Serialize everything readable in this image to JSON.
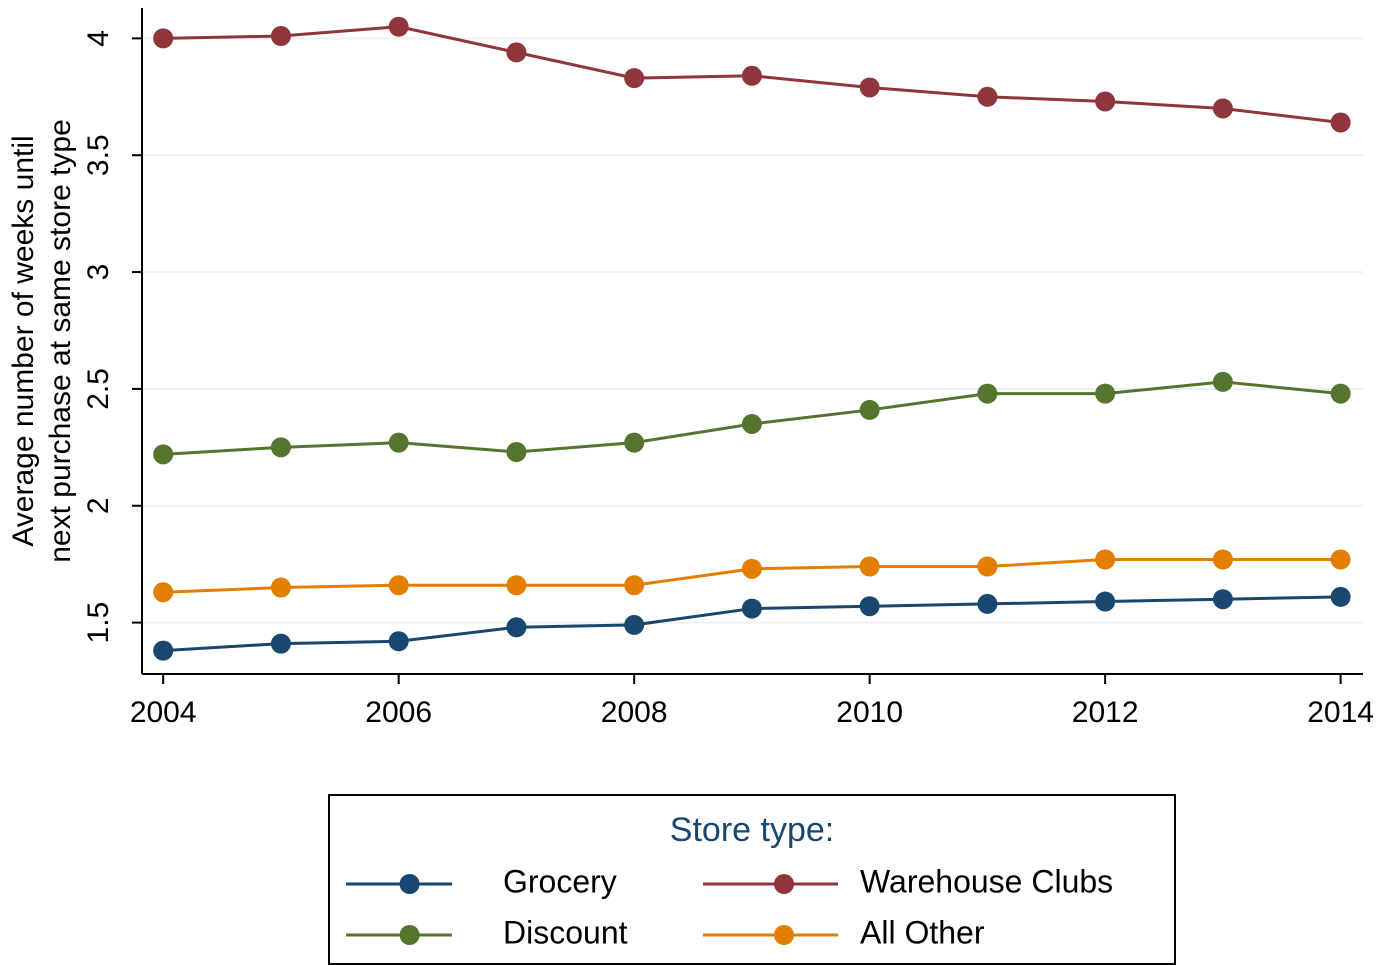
{
  "chart_data": {
    "type": "line",
    "y_label": [
      "Average number of weeks until",
      "next purchase at same store type"
    ],
    "x": [
      2004,
      2005,
      2006,
      2007,
      2008,
      2009,
      2010,
      2011,
      2012,
      2013,
      2014
    ],
    "series": [
      {
        "name": "Grocery",
        "color": "#1a476f",
        "values": [
          1.38,
          1.41,
          1.42,
          1.48,
          1.49,
          1.56,
          1.57,
          1.58,
          1.59,
          1.6,
          1.61
        ]
      },
      {
        "name": "Warehouse Clubs",
        "color": "#90353b",
        "values": [
          4.0,
          4.01,
          4.05,
          3.94,
          3.83,
          3.84,
          3.79,
          3.75,
          3.73,
          3.7,
          3.64
        ]
      },
      {
        "name": "Discount",
        "color": "#55752f",
        "values": [
          2.22,
          2.25,
          2.27,
          2.23,
          2.27,
          2.35,
          2.41,
          2.48,
          2.48,
          2.53,
          2.48
        ]
      },
      {
        "name": "All Other",
        "color": "#e37e00",
        "values": [
          1.63,
          1.65,
          1.66,
          1.66,
          1.66,
          1.73,
          1.74,
          1.74,
          1.77,
          1.77,
          1.77
        ]
      }
    ],
    "xlim": [
      2003.82,
      2014.19
    ],
    "xticks": [
      2004,
      2006,
      2008,
      2010,
      2012,
      2014
    ],
    "ylim": [
      1.28,
      4.13
    ],
    "yticks": [
      1.5,
      2,
      2.5,
      3,
      3.5,
      4
    ],
    "grid": true,
    "legend_title": "Store type:",
    "legend_position": "bottom"
  }
}
